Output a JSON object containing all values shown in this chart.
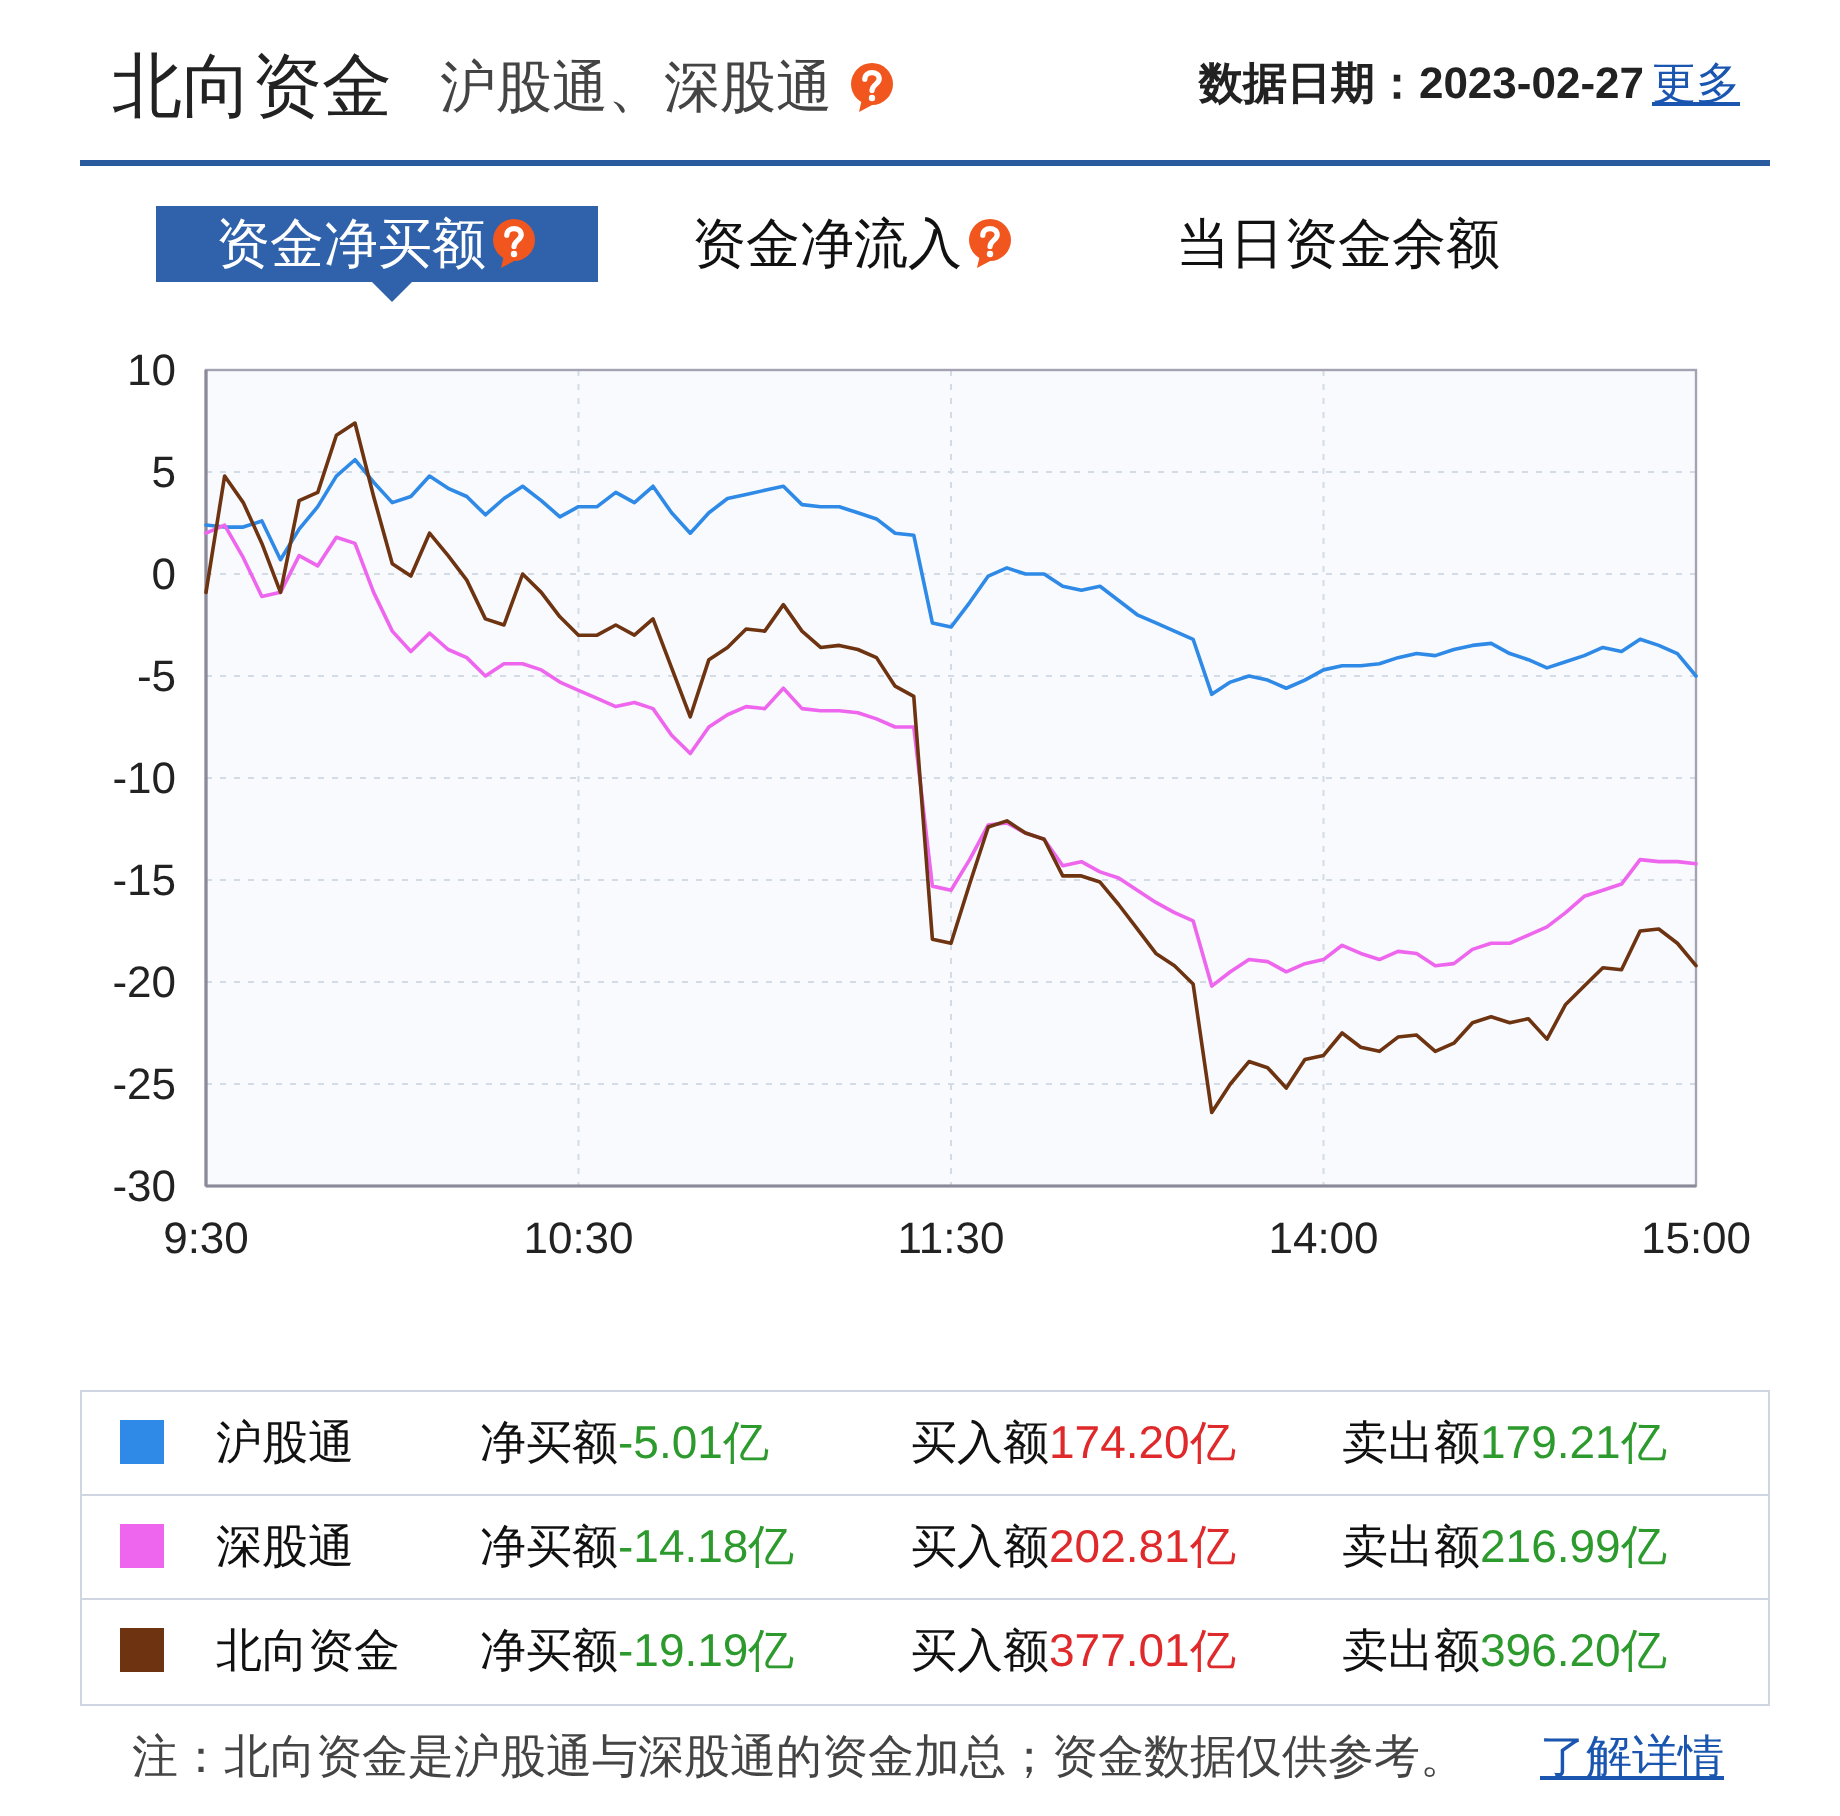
{
  "chart_data": [
    {
      "type": "line",
      "title": "北向资金",
      "subtitle": "沪股通、深股通",
      "annotations": [
        "数据日期：2023-02-27",
        "更多",
        "资金净买额",
        "资金净流入",
        "当日资金余额",
        "注：北向资金是沪股通与深股通的资金加总；资金数据仅供参考。",
        "了解详情"
      ],
      "categories": [
        "9:30",
        null,
        null,
        null,
        null,
        null,
        null,
        null,
        null,
        null,
        null,
        null,
        null,
        null,
        null,
        null,
        null,
        null,
        null,
        null,
        "10:30",
        null,
        null,
        null,
        null,
        null,
        null,
        null,
        null,
        null,
        null,
        null,
        null,
        null,
        null,
        null,
        null,
        null,
        null,
        null,
        "11:30",
        null,
        null,
        null,
        null,
        null,
        null,
        null,
        null,
        null,
        null,
        null,
        null,
        null,
        null,
        null,
        null,
        null,
        null,
        null,
        "14:00",
        null,
        null,
        null,
        null,
        null,
        null,
        null,
        null,
        null,
        null,
        null,
        null,
        null,
        null,
        null,
        null,
        null,
        null,
        null,
        "15:00"
      ],
      "ylim": [
        -30,
        10
      ],
      "yticks": [
        -30,
        -25,
        -20,
        -15,
        -10,
        -5,
        0,
        5,
        10
      ],
      "grid": true,
      "legend": "bottom",
      "marker": "none",
      "line_style": "solid",
      "series": [
        {
          "name": "沪股通",
          "color": "#2e8ae6",
          "values": [
            2.4,
            2.3,
            2.3,
            2.6,
            0.7,
            2.2,
            3.3,
            4.8,
            5.6,
            4.5,
            3.5,
            3.8,
            4.8,
            4.2,
            3.8,
            2.9,
            3.7,
            4.3,
            3.6,
            2.8,
            3.3,
            3.3,
            4.0,
            3.5,
            4.3,
            3.0,
            2.0,
            3.0,
            3.7,
            3.9,
            4.1,
            4.3,
            3.4,
            3.3,
            3.3,
            3.0,
            2.7,
            2.0,
            1.9,
            -2.4,
            -2.6,
            -1.4,
            -0.1,
            0.3,
            0.0,
            0.0,
            -0.6,
            -0.8,
            -0.6,
            -1.3,
            -2.0,
            -2.4,
            -2.8,
            -3.2,
            -5.9,
            -5.3,
            -5.0,
            -5.2,
            -5.6,
            -5.2,
            -4.7,
            -4.5,
            -4.5,
            -4.4,
            -4.1,
            -3.9,
            -4.0,
            -3.7,
            -3.5,
            -3.4,
            -3.9,
            -4.2,
            -4.6,
            -4.3,
            -4.0,
            -3.6,
            -3.8,
            -3.2,
            -3.5,
            -3.9,
            -5.0
          ]
        },
        {
          "name": "深股通",
          "color": "#ee66ee",
          "values": [
            2.0,
            2.4,
            0.8,
            -1.1,
            -0.9,
            0.9,
            0.4,
            1.8,
            1.5,
            -0.9,
            -2.8,
            -3.8,
            -2.9,
            -3.7,
            -4.1,
            -5.0,
            -4.4,
            -4.4,
            -4.7,
            -5.3,
            -5.7,
            -6.1,
            -6.5,
            -6.3,
            -6.6,
            -7.9,
            -8.8,
            -7.5,
            -6.9,
            -6.5,
            -6.6,
            -5.6,
            -6.6,
            -6.7,
            -6.7,
            -6.8,
            -7.1,
            -7.5,
            -7.5,
            -15.3,
            -15.5,
            -14.0,
            -12.3,
            -12.2,
            -12.7,
            -13.0,
            -14.3,
            -14.1,
            -14.6,
            -14.9,
            -15.5,
            -16.1,
            -16.6,
            -17.0,
            -20.2,
            -19.5,
            -18.9,
            -19.0,
            -19.5,
            -19.1,
            -18.9,
            -18.2,
            -18.6,
            -18.9,
            -18.5,
            -18.6,
            -19.2,
            -19.1,
            -18.4,
            -18.1,
            -18.1,
            -17.7,
            -17.3,
            -16.6,
            -15.8,
            -15.5,
            -15.2,
            -14.0,
            -14.1,
            -14.1,
            -14.2
          ]
        },
        {
          "name": "北向资金",
          "color": "#6e3412",
          "values": [
            -0.9,
            4.8,
            3.5,
            1.5,
            -0.9,
            3.6,
            4.0,
            6.8,
            7.4,
            3.8,
            0.5,
            -0.1,
            2.0,
            0.9,
            -0.3,
            -2.2,
            -2.5,
            0.0,
            -0.9,
            -2.1,
            -3.0,
            -3.0,
            -2.5,
            -3.0,
            -2.2,
            -4.6,
            -7.0,
            -4.2,
            -3.6,
            -2.7,
            -2.8,
            -1.5,
            -2.8,
            -3.6,
            -3.5,
            -3.7,
            -4.1,
            -5.5,
            -6.0,
            -17.9,
            -18.1,
            -15.2,
            -12.4,
            -12.1,
            -12.7,
            -13.0,
            -14.8,
            -14.8,
            -15.1,
            -16.2,
            -17.4,
            -18.6,
            -19.2,
            -20.1,
            -26.4,
            -25.0,
            -23.9,
            -24.2,
            -25.2,
            -23.8,
            -23.6,
            -22.5,
            -23.2,
            -23.4,
            -22.7,
            -22.6,
            -23.4,
            -23.0,
            -22.0,
            -21.7,
            -22.0,
            -21.8,
            -22.8,
            -21.1,
            -20.2,
            -19.3,
            -19.4,
            -17.5,
            -17.4,
            -18.1,
            -19.2
          ]
        }
      ]
    },
    {
      "type": "other",
      "categories": [
        "净买额",
        "买入额",
        "卖出额"
      ],
      "series": [
        {
          "values": [
            -5.01,
            174.2,
            179.21
          ],
          "value_labels": [
            "-5.01亿",
            "174.20亿",
            "179.21亿"
          ],
          "colors": [
            "#2c9a2c",
            "#e0292b",
            "#2c9a2c"
          ]
        },
        {
          "values": [
            -14.18,
            202.81,
            216.99
          ],
          "value_labels": [
            "-14.18亿",
            "202.81亿",
            "216.99亿"
          ],
          "colors": [
            "#2c9a2c",
            "#e0292b",
            "#2c9a2c"
          ]
        },
        {
          "values": [
            -19.19,
            377.01,
            396.2
          ],
          "value_labels": [
            "-19.19亿",
            "377.01亿",
            "396.20亿"
          ],
          "colors": [
            "#2c9a2c",
            "#e0292b",
            "#2c9a2c"
          ]
        }
      ]
    }
  ]
}
